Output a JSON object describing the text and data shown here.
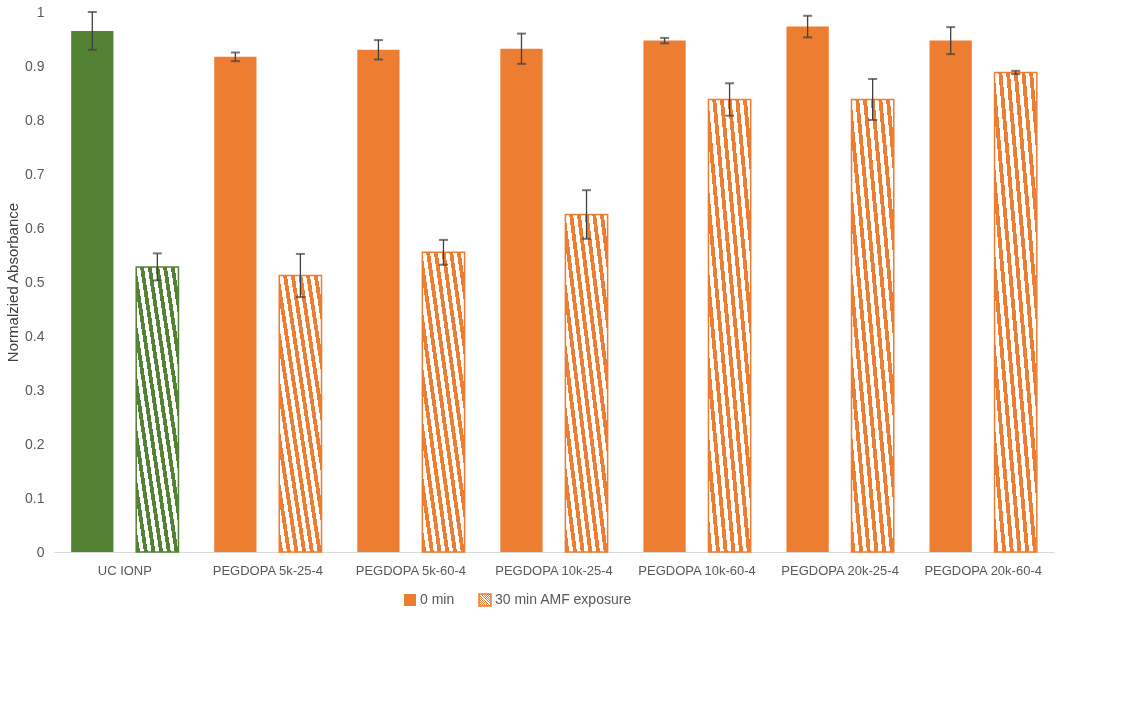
{
  "chart_data": {
    "type": "bar",
    "ylabel": "Normalzied Absorbance",
    "categories": [
      "UC IONP",
      "PEGDOPA 5k-25-4",
      "PEGDOPA 5k-60-4",
      "PEGDOPA 10k-25-4",
      "PEGDOPA 10k-60-4",
      "PEGDOPA 20k-25-4",
      "PEGDOPA 20k-60-4"
    ],
    "series": [
      {
        "name": "0 min",
        "color": "#ed7d31",
        "colors": [
          "#548235",
          "#ed7d31",
          "#ed7d31",
          "#ed7d31",
          "#ed7d31",
          "#ed7d31",
          "#ed7d31"
        ],
        "values": [
          0.965,
          0.917,
          0.93,
          0.932,
          0.947,
          0.973,
          0.947
        ],
        "errors": [
          0.035,
          0.008,
          0.018,
          0.028,
          0.005,
          0.02,
          0.025
        ]
      },
      {
        "name": "30 min AMF exposure",
        "color": "#ed7d31",
        "colors": [
          "#548235",
          "#ed7d31",
          "#ed7d31",
          "#ed7d31",
          "#ed7d31",
          "#ed7d31",
          "#ed7d31"
        ],
        "values": [
          0.528,
          0.512,
          0.555,
          0.625,
          0.838,
          0.838,
          0.888
        ],
        "errors": [
          0.025,
          0.04,
          0.023,
          0.045,
          0.03,
          0.038,
          0.003
        ]
      }
    ],
    "ylim": [
      0,
      1
    ],
    "yticks": [
      0,
      0.1,
      0.2,
      0.3,
      0.4,
      0.5,
      0.6,
      0.7,
      0.8,
      0.9,
      1
    ],
    "grid": false,
    "legend": "bottom"
  }
}
